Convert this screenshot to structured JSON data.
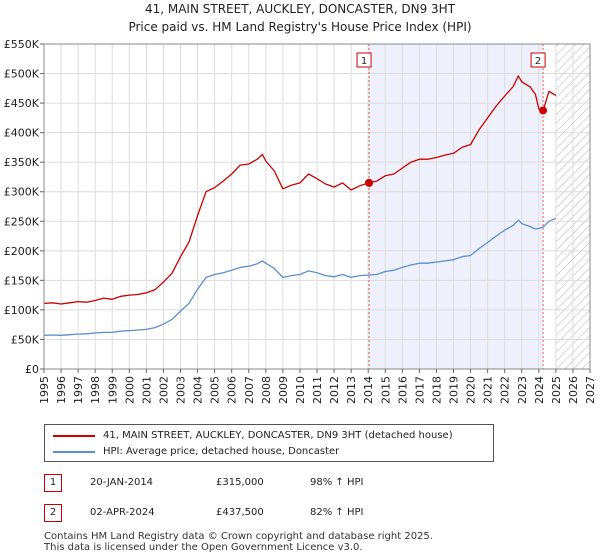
{
  "header": {
    "title_line1": "41, MAIN STREET, AUCKLEY, DONCASTER, DN9 3HT",
    "title_line2": "Price paid vs. HM Land Registry's House Price Index (HPI)"
  },
  "colors": {
    "property": "#cc0000",
    "hpi": "#5b8fd0",
    "highlight": "#eef1fb",
    "marker_line": "#e06060",
    "grid": "#dddddd"
  },
  "chart_data": {
    "type": "line",
    "xlim": [
      1995,
      2027
    ],
    "ylim": [
      0,
      550000
    ],
    "x_ticks": [
      "1995",
      "1996",
      "1997",
      "1998",
      "1999",
      "2000",
      "2001",
      "2002",
      "2003",
      "2004",
      "2005",
      "2006",
      "2007",
      "2008",
      "2009",
      "2010",
      "2011",
      "2012",
      "2013",
      "2014",
      "2015",
      "2016",
      "2017",
      "2018",
      "2019",
      "2020",
      "2021",
      "2022",
      "2023",
      "2024",
      "2025",
      "2026",
      "2027"
    ],
    "y_ticks": [
      {
        "value": 0,
        "label": "£0"
      },
      {
        "value": 50000,
        "label": "£50K"
      },
      {
        "value": 100000,
        "label": "£100K"
      },
      {
        "value": 150000,
        "label": "£150K"
      },
      {
        "value": 200000,
        "label": "£200K"
      },
      {
        "value": 250000,
        "label": "£250K"
      },
      {
        "value": 300000,
        "label": "£300K"
      },
      {
        "value": 350000,
        "label": "£350K"
      },
      {
        "value": 400000,
        "label": "£400K"
      },
      {
        "value": 450000,
        "label": "£450K"
      },
      {
        "value": 500000,
        "label": "£500K"
      },
      {
        "value": 550000,
        "label": "£550K"
      }
    ],
    "highlight_range": [
      2014.05,
      2024.25
    ],
    "future_hatch_from": 2025.0,
    "series": [
      {
        "name": "41, MAIN STREET, AUCKLEY, DONCASTER, DN9 3HT (detached house)",
        "key": "property",
        "points": [
          [
            1995.0,
            111000
          ],
          [
            1995.5,
            112000
          ],
          [
            1996.0,
            110000
          ],
          [
            1996.5,
            112000
          ],
          [
            1997.0,
            114000
          ],
          [
            1997.5,
            113000
          ],
          [
            1998.0,
            116000
          ],
          [
            1998.5,
            120000
          ],
          [
            1999.0,
            118000
          ],
          [
            1999.5,
            123000
          ],
          [
            2000.0,
            125000
          ],
          [
            2000.5,
            126000
          ],
          [
            2001.0,
            129000
          ],
          [
            2001.5,
            134000
          ],
          [
            2002.0,
            147000
          ],
          [
            2002.5,
            162000
          ],
          [
            2003.0,
            190000
          ],
          [
            2003.5,
            215000
          ],
          [
            2004.0,
            260000
          ],
          [
            2004.5,
            300000
          ],
          [
            2005.0,
            307000
          ],
          [
            2005.5,
            318000
          ],
          [
            2006.0,
            330000
          ],
          [
            2006.5,
            345000
          ],
          [
            2007.0,
            347000
          ],
          [
            2007.5,
            355000
          ],
          [
            2007.8,
            363000
          ],
          [
            2008.0,
            352000
          ],
          [
            2008.5,
            335000
          ],
          [
            2009.0,
            305000
          ],
          [
            2009.5,
            311000
          ],
          [
            2010.0,
            315000
          ],
          [
            2010.5,
            330000
          ],
          [
            2011.0,
            322000
          ],
          [
            2011.5,
            313000
          ],
          [
            2012.0,
            308000
          ],
          [
            2012.5,
            315000
          ],
          [
            2013.0,
            303000
          ],
          [
            2013.5,
            310000
          ],
          [
            2014.05,
            315000
          ],
          [
            2014.5,
            318000
          ],
          [
            2015.0,
            327000
          ],
          [
            2015.5,
            330000
          ],
          [
            2016.0,
            340000
          ],
          [
            2016.5,
            350000
          ],
          [
            2017.0,
            355000
          ],
          [
            2017.5,
            355000
          ],
          [
            2018.0,
            358000
          ],
          [
            2018.5,
            362000
          ],
          [
            2019.0,
            365000
          ],
          [
            2019.5,
            375000
          ],
          [
            2020.0,
            380000
          ],
          [
            2020.5,
            405000
          ],
          [
            2021.0,
            425000
          ],
          [
            2021.5,
            445000
          ],
          [
            2022.0,
            462000
          ],
          [
            2022.5,
            478000
          ],
          [
            2022.8,
            496000
          ],
          [
            2023.0,
            486000
          ],
          [
            2023.5,
            477000
          ],
          [
            2023.8,
            465000
          ],
          [
            2024.0,
            440000
          ],
          [
            2024.25,
            437500
          ],
          [
            2024.6,
            470000
          ],
          [
            2025.0,
            463000
          ]
        ]
      },
      {
        "name": "HPI: Average price, detached house, Doncaster",
        "key": "hpi",
        "points": [
          [
            1995.0,
            57000
          ],
          [
            1995.5,
            57500
          ],
          [
            1996.0,
            57000
          ],
          [
            1996.5,
            58000
          ],
          [
            1997.0,
            59000
          ],
          [
            1997.5,
            59500
          ],
          [
            1998.0,
            61000
          ],
          [
            1998.5,
            62000
          ],
          [
            1999.0,
            62000
          ],
          [
            1999.5,
            64000
          ],
          [
            2000.0,
            65000
          ],
          [
            2000.5,
            66000
          ],
          [
            2001.0,
            67000
          ],
          [
            2001.5,
            70000
          ],
          [
            2002.0,
            76000
          ],
          [
            2002.5,
            84000
          ],
          [
            2003.0,
            98000
          ],
          [
            2003.5,
            111000
          ],
          [
            2004.0,
            135000
          ],
          [
            2004.5,
            155000
          ],
          [
            2005.0,
            160000
          ],
          [
            2005.5,
            163000
          ],
          [
            2006.0,
            167000
          ],
          [
            2006.5,
            172000
          ],
          [
            2007.0,
            174000
          ],
          [
            2007.5,
            178000
          ],
          [
            2007.8,
            183000
          ],
          [
            2008.0,
            179000
          ],
          [
            2008.5,
            170000
          ],
          [
            2009.0,
            155000
          ],
          [
            2009.5,
            158000
          ],
          [
            2010.0,
            160000
          ],
          [
            2010.5,
            166000
          ],
          [
            2011.0,
            163000
          ],
          [
            2011.5,
            158000
          ],
          [
            2012.0,
            156000
          ],
          [
            2012.5,
            160000
          ],
          [
            2013.0,
            155000
          ],
          [
            2013.5,
            158000
          ],
          [
            2014.05,
            159000
          ],
          [
            2014.5,
            160000
          ],
          [
            2015.0,
            165000
          ],
          [
            2015.5,
            167000
          ],
          [
            2016.0,
            172000
          ],
          [
            2016.5,
            176000
          ],
          [
            2017.0,
            179000
          ],
          [
            2017.5,
            179000
          ],
          [
            2018.0,
            181000
          ],
          [
            2018.5,
            183000
          ],
          [
            2019.0,
            185000
          ],
          [
            2019.5,
            190000
          ],
          [
            2020.0,
            192000
          ],
          [
            2020.5,
            204000
          ],
          [
            2021.0,
            214000
          ],
          [
            2021.5,
            225000
          ],
          [
            2022.0,
            235000
          ],
          [
            2022.5,
            243000
          ],
          [
            2022.8,
            252000
          ],
          [
            2023.0,
            246000
          ],
          [
            2023.5,
            241000
          ],
          [
            2023.8,
            237000
          ],
          [
            2024.0,
            238000
          ],
          [
            2024.25,
            240000
          ],
          [
            2024.6,
            250000
          ],
          [
            2025.0,
            255000
          ]
        ]
      }
    ],
    "annotations": [
      {
        "label": "1",
        "x": 2014.05,
        "y": 315000
      },
      {
        "label": "2",
        "x": 2024.25,
        "y": 437500
      }
    ]
  },
  "legend": {
    "property_label": "41, MAIN STREET, AUCKLEY, DONCASTER, DN9 3HT (detached house)",
    "hpi_label": "HPI: Average price, detached house, Doncaster"
  },
  "sales": [
    {
      "badge": "1",
      "date": "20-JAN-2014",
      "price": "£315,000",
      "hpi": "98% ↑ HPI"
    },
    {
      "badge": "2",
      "date": "02-APR-2024",
      "price": "£437,500",
      "hpi": "82% ↑ HPI"
    }
  ],
  "footer": {
    "line1": "Contains HM Land Registry data © Crown copyright and database right 2025.",
    "line2": "This data is licensed under the Open Government Licence v3.0."
  }
}
